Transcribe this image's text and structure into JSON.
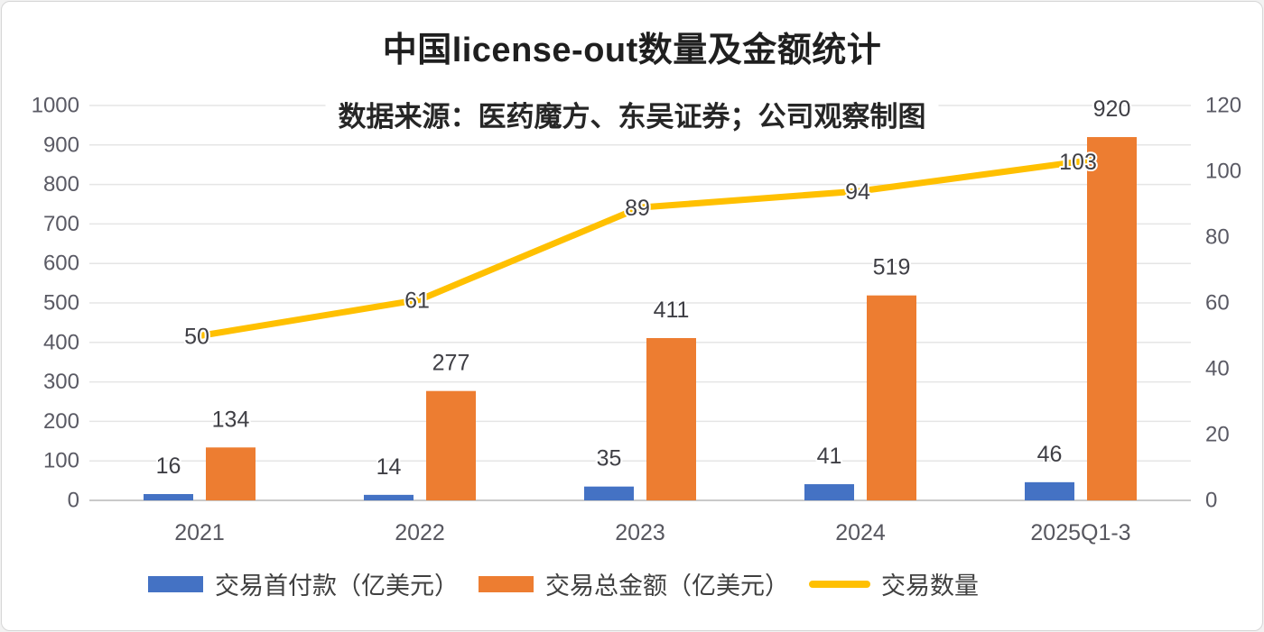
{
  "card": {
    "title": "中国license-out数量及金额统计",
    "subtitle": "数据来源：医药魔方、东吴证券；公司观察制图"
  },
  "chart_data": {
    "type": "combo-bar-line",
    "title": "中国license-out数量及金额统计",
    "subtitle": "数据来源：医药魔方、东吴证券；公司观察制图",
    "categories": [
      "2021",
      "2022",
      "2023",
      "2024",
      "2025Q1-3"
    ],
    "series": [
      {
        "name": "交易首付款（亿美元）",
        "chart_type": "bar",
        "axis": "left",
        "color": "#4472C4",
        "values": [
          16,
          14,
          35,
          41,
          46
        ]
      },
      {
        "name": "交易总金额（亿美元）",
        "chart_type": "bar",
        "axis": "left",
        "color": "#ED7D31",
        "values": [
          134,
          277,
          411,
          519,
          920
        ]
      },
      {
        "name": "交易数量",
        "chart_type": "line",
        "axis": "right",
        "color": "#FFC000",
        "values": [
          50,
          61,
          89,
          94,
          103
        ]
      }
    ],
    "left_axis": {
      "min": 0,
      "max": 1000,
      "step": 100,
      "tick_labels": [
        "0",
        "100",
        "200",
        "300",
        "400",
        "500",
        "600",
        "700",
        "800",
        "900",
        "1000"
      ]
    },
    "right_axis": {
      "min": 0,
      "max": 120,
      "step": 20,
      "tick_labels": [
        "0",
        "20",
        "40",
        "60",
        "80",
        "100",
        "120"
      ]
    },
    "grid": true,
    "legend_position": "bottom",
    "colors": {
      "gridline": "#e5e5e5",
      "axis_line": "#c9c9c9",
      "tick_text": "#5a5a64",
      "label_text": "#3f3f45"
    }
  }
}
